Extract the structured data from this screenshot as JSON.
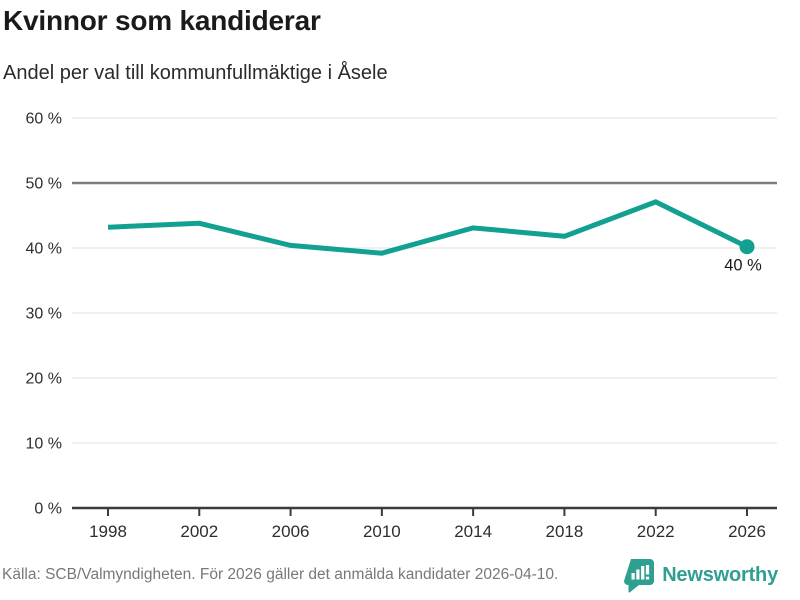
{
  "header": {
    "title": "Kvinnor som kandiderar",
    "subtitle": "Andel per val till kommunfullmäktige i Åsele"
  },
  "footer": {
    "source": "Källa: SCB/Valmyndigheten. För 2026 gäller det anmälda kandidater 2026-04-10.",
    "brand": "Newsworthy",
    "brand_icon": "newsworthy-speech-bubble-bar-chart"
  },
  "colors": {
    "line": "#12a091",
    "grid": "#e6e6e6",
    "reference": "#7e7e7e",
    "axis": "#3b3b3b",
    "text": "#2e2e2e",
    "title": "#1a1a1a",
    "end_label": "#1a1a1a",
    "muted": "#787878",
    "brand": "#2f9f92"
  },
  "chart_data": {
    "type": "line",
    "title": "Kvinnor som kandiderar",
    "subtitle": "Andel per val till kommunfullmäktige i Åsele",
    "x": [
      1998,
      2002,
      2006,
      2010,
      2014,
      2018,
      2022,
      2026
    ],
    "values": [
      43.2,
      43.8,
      40.4,
      39.2,
      43.1,
      41.8,
      47.1,
      40.2
    ],
    "xticks": [
      "1998",
      "2002",
      "2006",
      "2010",
      "2014",
      "2018",
      "2022",
      "2026"
    ],
    "yticks": [
      "0 %",
      "10 %",
      "20 %",
      "30 %",
      "40 %",
      "50 %",
      "60 %"
    ],
    "ylim": [
      0,
      60
    ],
    "ytick_step": 10,
    "xlabel": "",
    "ylabel": "",
    "grid": true,
    "legend": "none",
    "reference_line_value": 50,
    "end_label": "40 %",
    "end_marker": "dot"
  }
}
